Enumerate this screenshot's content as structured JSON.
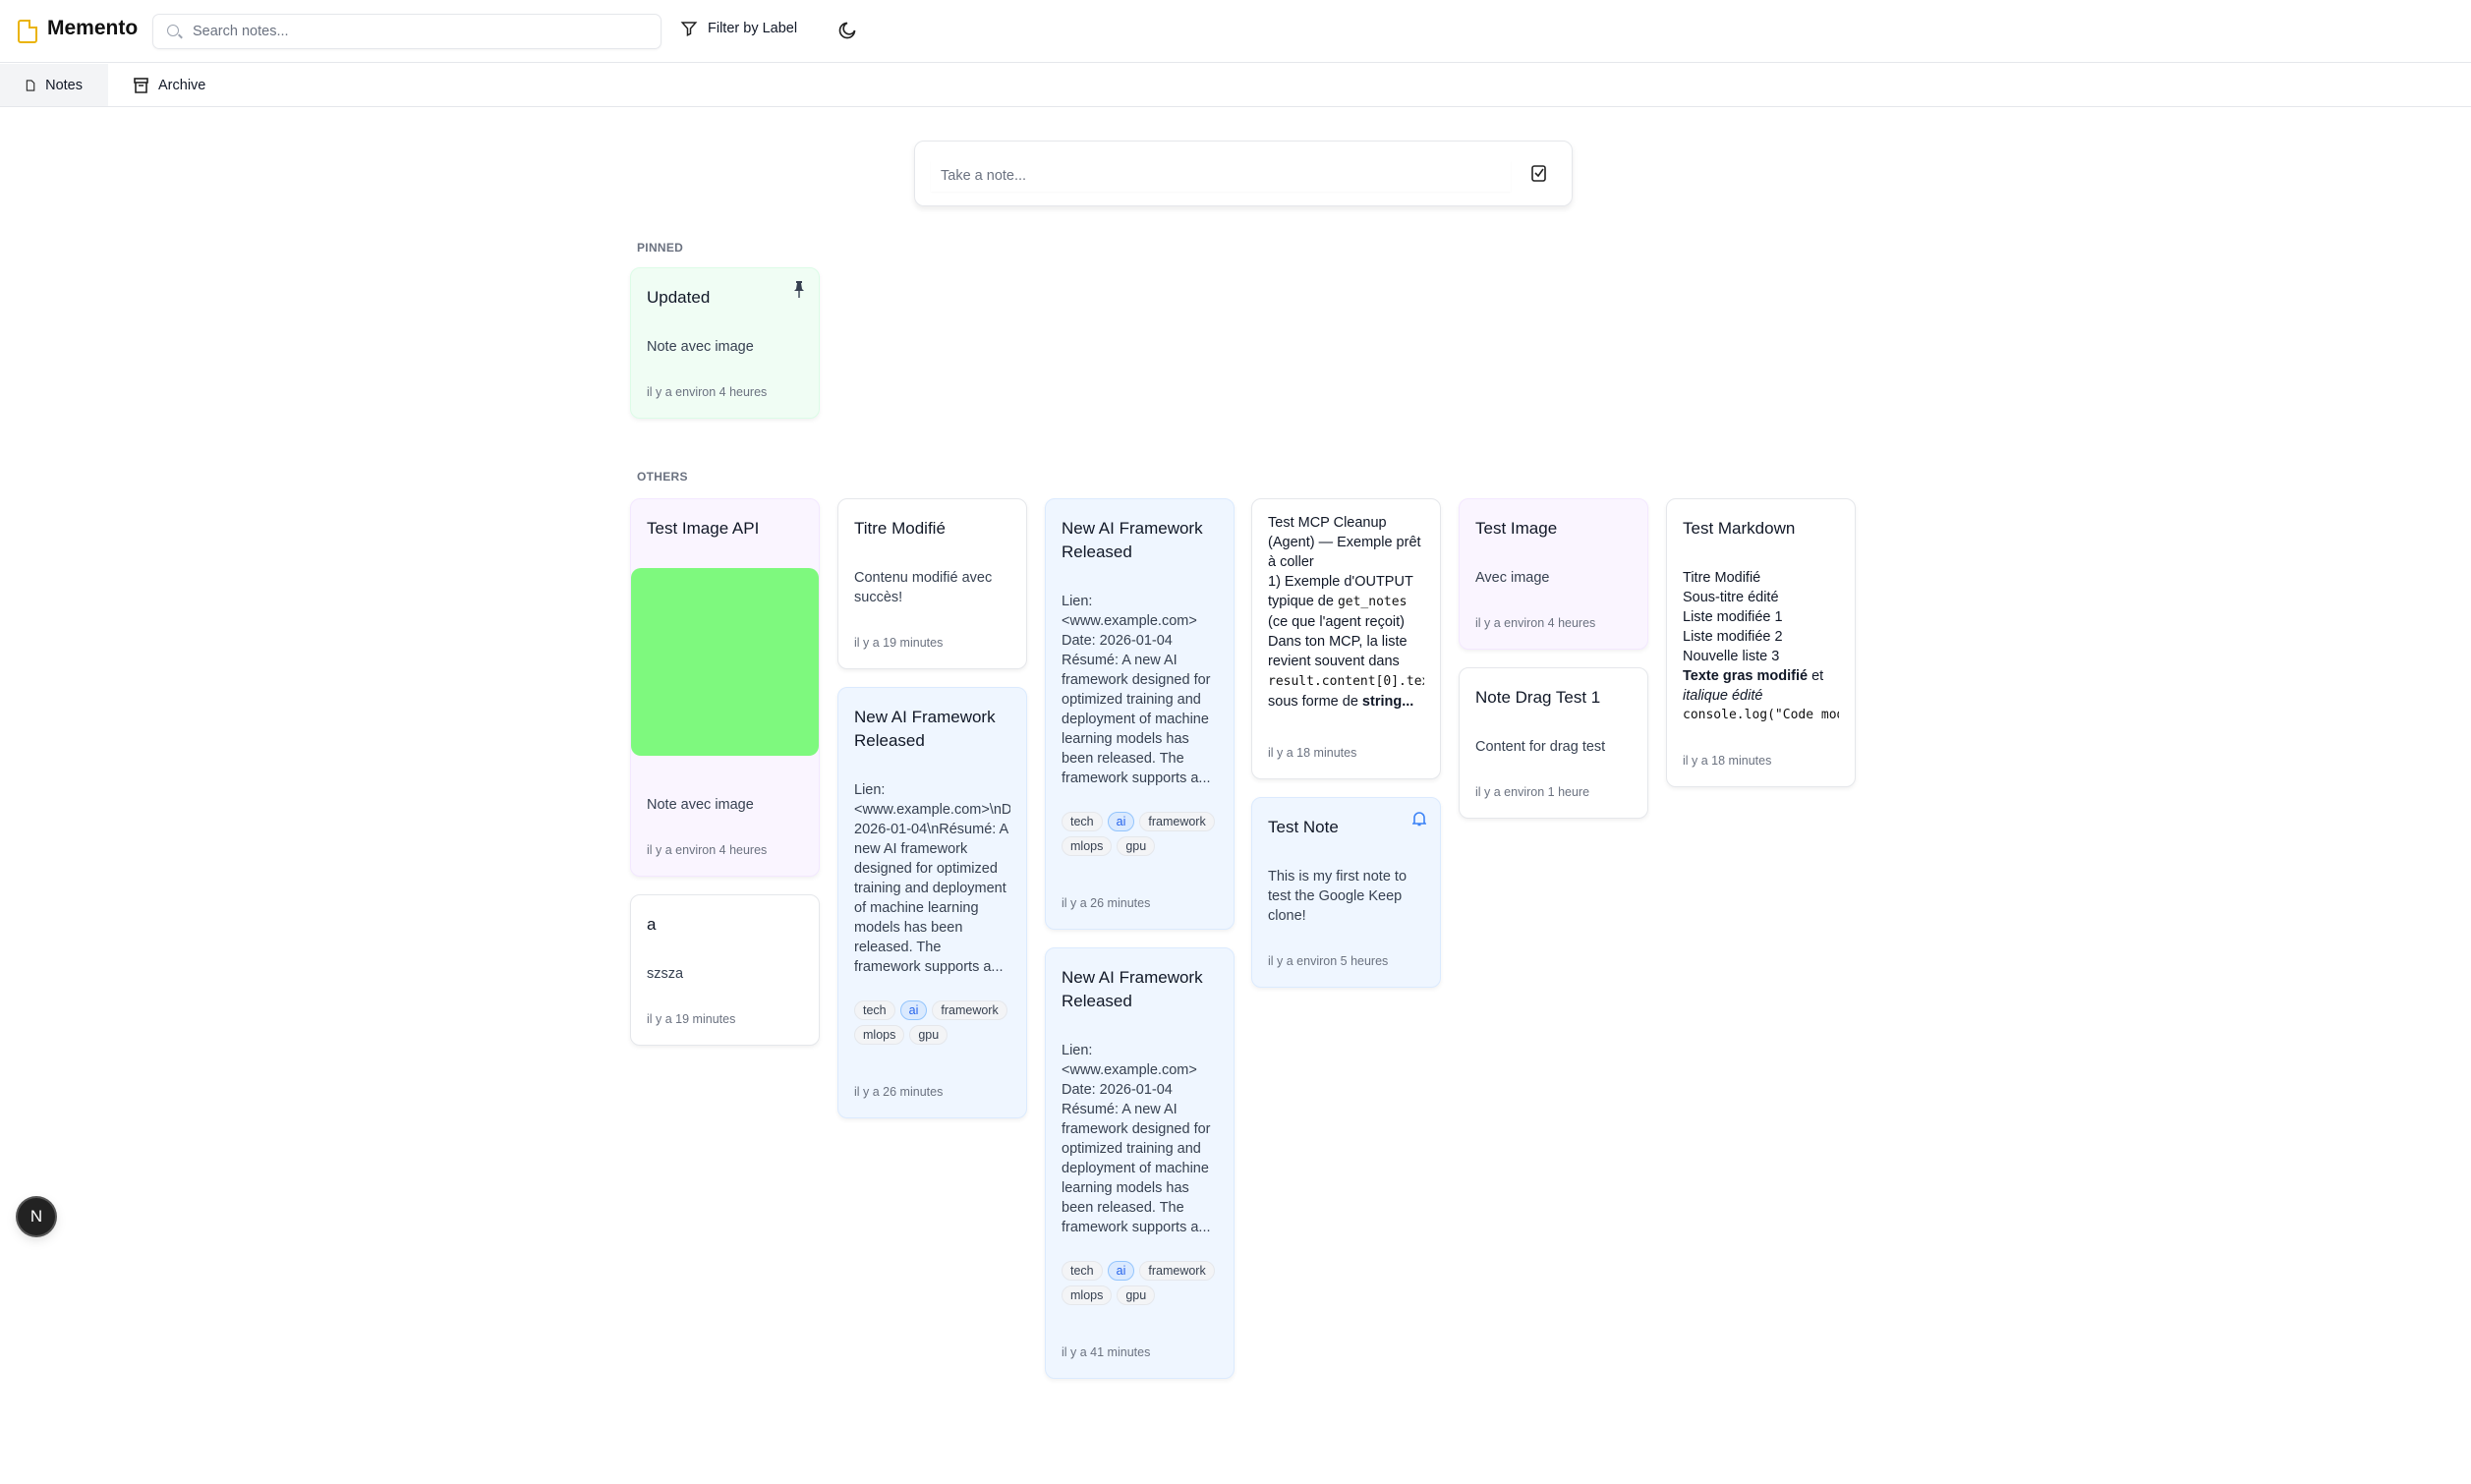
{
  "app": {
    "title": "Memento",
    "accent": "#eab308"
  },
  "search": {
    "placeholder": "Search notes..."
  },
  "toolbar": {
    "filter_label": "Filter by Label",
    "theme_icon": "moon-icon"
  },
  "tabs": [
    {
      "label": "Notes",
      "active": true
    },
    {
      "label": "Archive",
      "active": false
    }
  ],
  "composer": {
    "placeholder": "Take a note..."
  },
  "sections": {
    "pinned": "PINNED",
    "others": "OTHERS"
  },
  "pinned": [
    {
      "title": "Updated",
      "body": "Note avec image",
      "time": "il y a environ 4 heures",
      "color": "#f0fdf4"
    }
  ],
  "notes": {
    "test_image_api": {
      "title": "Test Image API",
      "body": "Note avec image",
      "time": "il y a environ 4 heures",
      "image_color": "#7ef97e"
    },
    "a": {
      "title": "a",
      "body": "szsza",
      "time": "il y a 19 minutes"
    },
    "titre": {
      "title": "Titre Modifié",
      "body": "Contenu modifié avec succès!",
      "time": "il y a 19 minutes"
    },
    "ai1": {
      "title": "New AI Framework Released",
      "body": "Lien: <www.example.com>\\nDate: 2026-01-04\\nRésumé: A new AI framework designed for optimized training and deployment of machine learning models has been released. The framework supports a...",
      "tags": [
        "tech",
        "ai",
        "framework",
        "mlops",
        "gpu"
      ],
      "time": "il y a 26 minutes"
    },
    "ai2": {
      "title": "New AI Framework Released",
      "body": "Lien:\n<www.example.com>\nDate: 2026-01-04\nRésumé: A new AI framework designed for optimized training and deployment of machine learning models has been released. The framework supports a...",
      "tags": [
        "tech",
        "ai",
        "framework",
        "mlops",
        "gpu"
      ],
      "time": "il y a 26 minutes"
    },
    "ai3": {
      "title": "New AI Framework Released",
      "body": "Lien:\n<www.example.com>\nDate: 2026-01-04\nRésumé: A new AI framework designed for optimized training and deployment of machine learning models has been released. The framework supports a...",
      "tags": [
        "tech",
        "ai",
        "framework",
        "mlops",
        "gpu"
      ],
      "time": "il y a 41 minutes"
    },
    "mcp": {
      "p1": "Test MCP Cleanup (Agent) — Exemple prêt à coller",
      "p2": "1) Exemple d'OUTPUT typique de ",
      "c1": "get_notes",
      "p3": " (ce que l'agent reçoit) Dans ton MCP, la liste revient souvent dans ",
      "c2": "result.content[0].tex",
      "p4": " sous forme de ",
      "b1": "string...",
      "time": "il y a 18 minutes"
    },
    "test_note": {
      "title": "Test Note",
      "body": "This is my first note to test the Google Keep clone!",
      "time": "il y a environ 5 heures",
      "reminder_icon": "bell-icon"
    },
    "test_image": {
      "title": "Test Image",
      "body": "Avec image",
      "time": "il y a environ 4 heures"
    },
    "drag": {
      "title": "Note Drag Test 1",
      "body": "Content for drag test",
      "time": "il y a environ 1 heure"
    },
    "markdown": {
      "title": "Test Markdown",
      "lines": [
        "Titre Modifié",
        "Sous-titre édité",
        "Liste modifiée 1",
        "Liste modifiée 2",
        "Nouvelle liste 3"
      ],
      "bold": "Texte gras modifié",
      "after_bold": " et",
      "italic": "italique édité",
      "code": "console.log(\"Code mod",
      "time": "il y a 18 minutes"
    }
  },
  "fab": {
    "label": "N"
  }
}
